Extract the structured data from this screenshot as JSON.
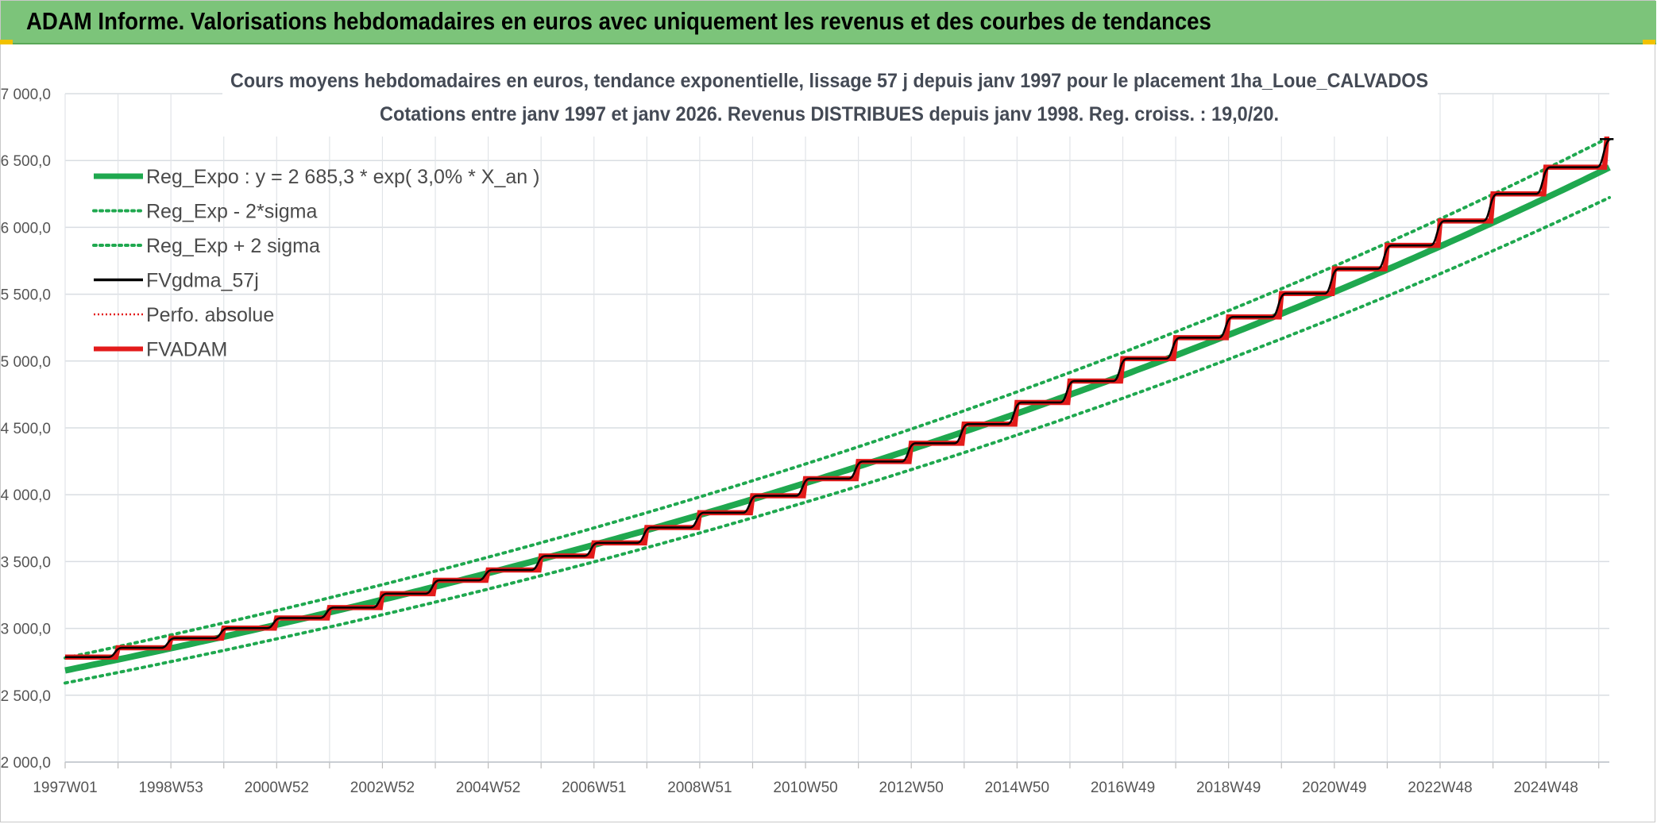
{
  "header": {
    "title": "ADAM Informe. Valorisations hebdomadaires en euros avec uniquement les revenus et des courbes de tendances"
  },
  "colors": {
    "header_bg": "#7cc47a",
    "reg": "#1fa84f",
    "fv": "#e31b1b",
    "gdma": "#000000",
    "perf": "#e31b1b"
  },
  "chart_data": {
    "type": "line",
    "title": "Cours moyens hebdomadaires en euros, tendance exponentielle, lissage 57 j depuis janv 1997 pour le placement 1ha_Loue_CALVADOS",
    "subtitle": "Cotations entre janv 1997 et janv 2026. Revenus DISTRIBUES depuis janv 1998. Reg. croiss. : 19,0/20.",
    "xlabel": "",
    "ylabel": "",
    "ylim": [
      2000,
      7000
    ],
    "y_ticks": [
      "7 000,0",
      "6 500,0",
      "6 000,0",
      "5 500,0",
      "5 000,0",
      "4 500,0",
      "4 000,0",
      "3 500,0",
      "3 000,0",
      "2 500,0",
      "2 000,0"
    ],
    "x_range": [
      1997.0,
      2026.2
    ],
    "x_ticks": [
      {
        "label": "1997W01",
        "x": 1997.0
      },
      {
        "label": "1998W53",
        "x": 1999.0
      },
      {
        "label": "2000W52",
        "x": 2001.0
      },
      {
        "label": "2002W52",
        "x": 2003.0
      },
      {
        "label": "2004W52",
        "x": 2005.0
      },
      {
        "label": "2006W51",
        "x": 2007.0
      },
      {
        "label": "2008W51",
        "x": 2009.0
      },
      {
        "label": "2010W50",
        "x": 2011.0
      },
      {
        "label": "2012W50",
        "x": 2013.0
      },
      {
        "label": "2014W50",
        "x": 2015.0
      },
      {
        "label": "2016W49",
        "x": 2017.0
      },
      {
        "label": "2018W49",
        "x": 2019.0
      },
      {
        "label": "2020W49",
        "x": 2021.0
      },
      {
        "label": "2022W48",
        "x": 2023.0
      },
      {
        "label": "2024W48",
        "x": 2025.0
      }
    ],
    "regression": {
      "a": 2685.3,
      "rate": 0.03,
      "sigma_band": 0.035,
      "x0": 1997.0
    },
    "legend": [
      {
        "name": "Reg_Expo : y = 2 685,3 * exp( 3,0% *  X_an )",
        "style": "reg"
      },
      {
        "name": "Reg_Exp - 2*sigma",
        "style": "band"
      },
      {
        "name": "Reg_Exp + 2 sigma",
        "style": "band"
      },
      {
        "name": "FVgdma_57j",
        "style": "gdma"
      },
      {
        "name": "Perfo. absolue",
        "style": "perf"
      },
      {
        "name": "FVADAM",
        "style": "fv"
      }
    ],
    "legend_position": "top-left",
    "grid": true,
    "fvadam_steps": [
      {
        "x": 1997.0,
        "y": 2785
      },
      {
        "x": 1998.0,
        "y": 2855
      },
      {
        "x": 1999.0,
        "y": 2927
      },
      {
        "x": 2000.0,
        "y": 3002
      },
      {
        "x": 2001.0,
        "y": 3078
      },
      {
        "x": 2002.0,
        "y": 3156
      },
      {
        "x": 2003.0,
        "y": 3260
      },
      {
        "x": 2004.0,
        "y": 3360
      },
      {
        "x": 2005.0,
        "y": 3437
      },
      {
        "x": 2006.0,
        "y": 3542
      },
      {
        "x": 2007.0,
        "y": 3640
      },
      {
        "x": 2008.0,
        "y": 3755
      },
      {
        "x": 2009.0,
        "y": 3865
      },
      {
        "x": 2010.0,
        "y": 3992
      },
      {
        "x": 2011.0,
        "y": 4120
      },
      {
        "x": 2012.0,
        "y": 4248
      },
      {
        "x": 2013.0,
        "y": 4385
      },
      {
        "x": 2014.0,
        "y": 4528
      },
      {
        "x": 2015.0,
        "y": 4690
      },
      {
        "x": 2016.0,
        "y": 4850
      },
      {
        "x": 2017.0,
        "y": 5018
      },
      {
        "x": 2018.0,
        "y": 5175
      },
      {
        "x": 2019.0,
        "y": 5330
      },
      {
        "x": 2020.0,
        "y": 5505
      },
      {
        "x": 2021.0,
        "y": 5690
      },
      {
        "x": 2022.0,
        "y": 5865
      },
      {
        "x": 2023.0,
        "y": 6048
      },
      {
        "x": 2024.0,
        "y": 6250
      },
      {
        "x": 2025.0,
        "y": 6450
      },
      {
        "x": 2026.15,
        "y": 6660
      }
    ]
  }
}
